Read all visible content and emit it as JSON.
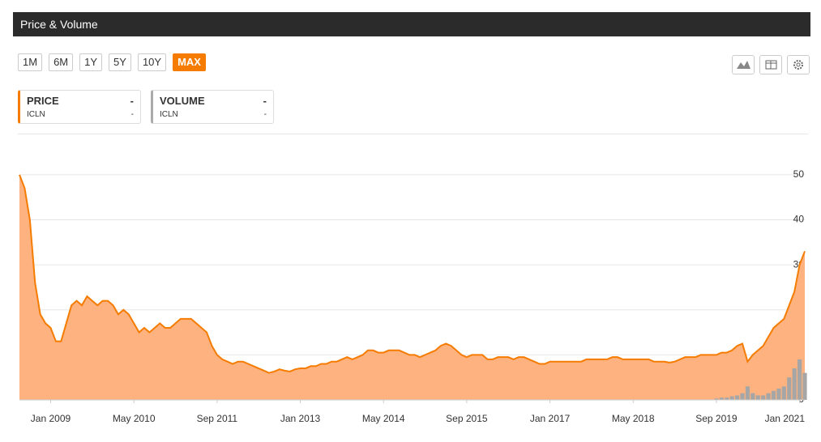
{
  "header": {
    "title": "Price & Volume"
  },
  "range_buttons": [
    "1M",
    "6M",
    "1Y",
    "5Y",
    "10Y",
    "MAX"
  ],
  "active_range": 5,
  "chart_data": {
    "type": "line",
    "x": [
      "2008-07",
      "2008-08",
      "2008-09",
      "2008-10",
      "2008-11",
      "2008-12",
      "2009-01",
      "2009-02",
      "2009-03",
      "2009-04",
      "2009-05",
      "2009-06",
      "2009-07",
      "2009-08",
      "2009-09",
      "2009-10",
      "2009-11",
      "2009-12",
      "2010-01",
      "2010-02",
      "2010-03",
      "2010-04",
      "2010-05",
      "2010-06",
      "2010-07",
      "2010-08",
      "2010-09",
      "2010-10",
      "2010-11",
      "2010-12",
      "2011-01",
      "2011-02",
      "2011-03",
      "2011-04",
      "2011-05",
      "2011-06",
      "2011-07",
      "2011-08",
      "2011-09",
      "2011-10",
      "2011-11",
      "2011-12",
      "2012-01",
      "2012-02",
      "2012-03",
      "2012-04",
      "2012-05",
      "2012-06",
      "2012-07",
      "2012-08",
      "2012-09",
      "2012-10",
      "2012-11",
      "2012-12",
      "2013-01",
      "2013-02",
      "2013-03",
      "2013-04",
      "2013-05",
      "2013-06",
      "2013-07",
      "2013-08",
      "2013-09",
      "2013-10",
      "2013-11",
      "2013-12",
      "2014-01",
      "2014-02",
      "2014-03",
      "2014-04",
      "2014-05",
      "2014-06",
      "2014-07",
      "2014-08",
      "2014-09",
      "2014-10",
      "2014-11",
      "2014-12",
      "2015-01",
      "2015-02",
      "2015-03",
      "2015-04",
      "2015-05",
      "2015-06",
      "2015-07",
      "2015-08",
      "2015-09",
      "2015-10",
      "2015-11",
      "2015-12",
      "2016-01",
      "2016-02",
      "2016-03",
      "2016-04",
      "2016-05",
      "2016-06",
      "2016-07",
      "2016-08",
      "2016-09",
      "2016-10",
      "2016-11",
      "2016-12",
      "2017-01",
      "2017-02",
      "2017-03",
      "2017-04",
      "2017-05",
      "2017-06",
      "2017-07",
      "2017-08",
      "2017-09",
      "2017-10",
      "2017-11",
      "2017-12",
      "2018-01",
      "2018-02",
      "2018-03",
      "2018-04",
      "2018-05",
      "2018-06",
      "2018-07",
      "2018-08",
      "2018-09",
      "2018-10",
      "2018-11",
      "2018-12",
      "2019-01",
      "2019-02",
      "2019-03",
      "2019-04",
      "2019-05",
      "2019-06",
      "2019-07",
      "2019-08",
      "2019-09",
      "2019-10",
      "2019-11",
      "2019-12",
      "2020-01",
      "2020-02",
      "2020-03",
      "2020-04",
      "2020-05",
      "2020-06",
      "2020-07",
      "2020-08",
      "2020-09",
      "2020-10",
      "2020-11",
      "2020-12",
      "2021-01",
      "2021-02"
    ],
    "series": [
      {
        "name": "PRICE",
        "symbol": "ICLN",
        "value": "-",
        "symbol_value": "-",
        "color": "#f57c00",
        "fill": "#fdb27f",
        "values": [
          50,
          47,
          40,
          26,
          19,
          17,
          16,
          13,
          13,
          17,
          21,
          22,
          21,
          23,
          22,
          21,
          22,
          22,
          21,
          19,
          20,
          19,
          17,
          15,
          16,
          15,
          16,
          17,
          16,
          16,
          17,
          18,
          18,
          18,
          17,
          16,
          15,
          12,
          10,
          9,
          8.5,
          8,
          8.5,
          8.5,
          8,
          7.5,
          7,
          6.5,
          6,
          6.3,
          6.8,
          6.5,
          6.3,
          6.8,
          7,
          7,
          7.5,
          7.5,
          8,
          8,
          8.5,
          8.5,
          9,
          9.5,
          9,
          9.5,
          10,
          11,
          11,
          10.5,
          10.5,
          11,
          11,
          11,
          10.5,
          10,
          10,
          9.5,
          10,
          10.5,
          11,
          12,
          12.5,
          12,
          11,
          10,
          9.5,
          10,
          10,
          10,
          9,
          9,
          9.5,
          9.5,
          9.5,
          9,
          9.5,
          9.5,
          9,
          8.5,
          8,
          8,
          8.5,
          8.5,
          8.5,
          8.5,
          8.5,
          8.5,
          8.5,
          9,
          9,
          9,
          9,
          9,
          9.5,
          9.5,
          9,
          9,
          9,
          9,
          9,
          9,
          8.5,
          8.5,
          8.5,
          8.3,
          8.5,
          9,
          9.5,
          9.5,
          9.5,
          10,
          10,
          10,
          10,
          10.5,
          10.5,
          11,
          12,
          12.5,
          8.5,
          10,
          11,
          12,
          14,
          16,
          17,
          18,
          21,
          24,
          30,
          33
        ]
      },
      {
        "name": "VOLUME",
        "symbol": "ICLN",
        "value": "-",
        "symbol_value": "-",
        "color": "#a6a6a6",
        "values": [
          0,
          0,
          0,
          0,
          0,
          0,
          0,
          0,
          0,
          0,
          0,
          0,
          0,
          0,
          0,
          0,
          0,
          0,
          0,
          0,
          0,
          0,
          0,
          0,
          0,
          0,
          0,
          0,
          0,
          0,
          0,
          0,
          0,
          0,
          0,
          0,
          0,
          0,
          0,
          0,
          0,
          0,
          0,
          0,
          0,
          0,
          0,
          0,
          0,
          0,
          0,
          0,
          0,
          0,
          0,
          0,
          0,
          0,
          0,
          0,
          0,
          0,
          0,
          0,
          0,
          0,
          0,
          0,
          0,
          0,
          0,
          0,
          0,
          0,
          0,
          0,
          0,
          0,
          0,
          0,
          0,
          0,
          0,
          0,
          0,
          0,
          0,
          0,
          0,
          0,
          0,
          0,
          0,
          0,
          0,
          0,
          0,
          0,
          0,
          0,
          0,
          0,
          0,
          0,
          0,
          0,
          0,
          0,
          0,
          0,
          0,
          0,
          0,
          0,
          0,
          0,
          0,
          0,
          0,
          0,
          0,
          0,
          0,
          0,
          0,
          0,
          0,
          0,
          0,
          0,
          0,
          0,
          0,
          0,
          0.3,
          0.5,
          0.5,
          0.8,
          1,
          1.5,
          3,
          1.5,
          1,
          1,
          1.5,
          2,
          2.5,
          3,
          5,
          7,
          9,
          6
        ]
      }
    ],
    "xlim": [
      "2008-07",
      "2021-02"
    ],
    "xticks": [
      {
        "value": "2009-01",
        "label": "Jan 2009"
      },
      {
        "value": "2010-05",
        "label": "May 2010"
      },
      {
        "value": "2011-09",
        "label": "Sep 2011"
      },
      {
        "value": "2013-01",
        "label": "Jan 2013"
      },
      {
        "value": "2014-05",
        "label": "May 2014"
      },
      {
        "value": "2015-09",
        "label": "Sep 2015"
      },
      {
        "value": "2017-01",
        "label": "Jan 2017"
      },
      {
        "value": "2018-05",
        "label": "May 2018"
      },
      {
        "value": "2019-09",
        "label": "Sep 2019"
      },
      {
        "value": "2021-01",
        "label": "Jan 2021"
      }
    ],
    "ylim": [
      0,
      55
    ],
    "yticks": [
      0,
      10,
      20,
      30,
      40,
      50
    ],
    "grid": true
  }
}
